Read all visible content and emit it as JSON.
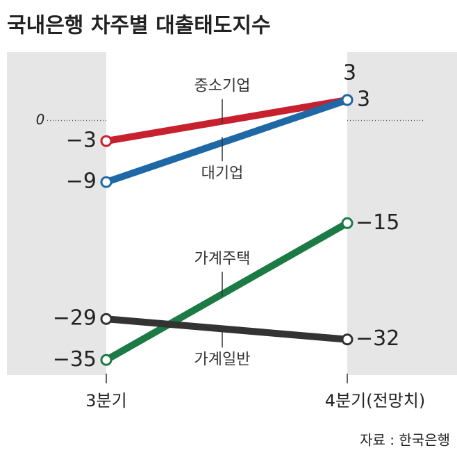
{
  "chart_data": {
    "type": "slope",
    "title": "국내은행 차주별 대출태도지수",
    "categories": [
      "3분기",
      "4분기(전망치)"
    ],
    "series": [
      {
        "name": "중소기업",
        "color": "#c7202f",
        "values": [
          -3,
          3
        ],
        "value_labels": [
          "−3",
          "3"
        ]
      },
      {
        "name": "대기업",
        "color": "#1f68a6",
        "values": [
          -9,
          3
        ],
        "value_labels": [
          "−9",
          "3"
        ]
      },
      {
        "name": "가계주택",
        "color": "#1c7a45",
        "values": [
          -35,
          -15
        ],
        "value_labels": [
          "−35",
          "−15"
        ]
      },
      {
        "name": "가계일반",
        "color": "#333333",
        "values": [
          -29,
          -32
        ],
        "value_labels": [
          "−29",
          "−32"
        ]
      }
    ],
    "ylim": [
      -37,
      10
    ],
    "yticks": [
      0
    ],
    "source": "자료 : 한국은행"
  }
}
